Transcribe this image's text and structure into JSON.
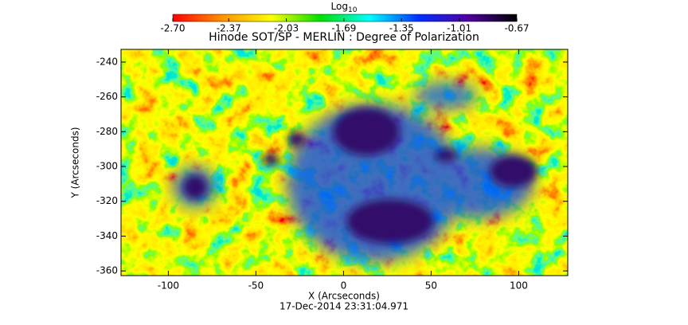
{
  "chart_data": {
    "type": "image",
    "title": "Hinode SOT/SP - MERLIN : Degree of Polarization",
    "xlabel": "X (Arcseconds)",
    "ylabel": "Y (Arcseconds)",
    "footer": "17-Dec-2014 23:31:04.971",
    "xlim": [
      -127,
      128
    ],
    "ylim": [
      -362.7,
      -232.7
    ],
    "xticks": [
      -100,
      -50,
      0,
      50,
      100
    ],
    "yticks": [
      -360,
      -340,
      -320,
      -300,
      -280,
      -260,
      -240
    ],
    "colorbar": {
      "label": "Log",
      "label_subscript": "10",
      "ticks": [
        {
          "value": -2.7,
          "label": "-2.70"
        },
        -2.37,
        -2.03,
        -1.69,
        -1.35,
        -1.01,
        -0.67
      ],
      "colors": [
        "#ff0000",
        "#ff9000",
        "#ffff00",
        "#00e000",
        "#00ffff",
        "#0030ff",
        "#5000a0",
        "#000000"
      ]
    }
  }
}
